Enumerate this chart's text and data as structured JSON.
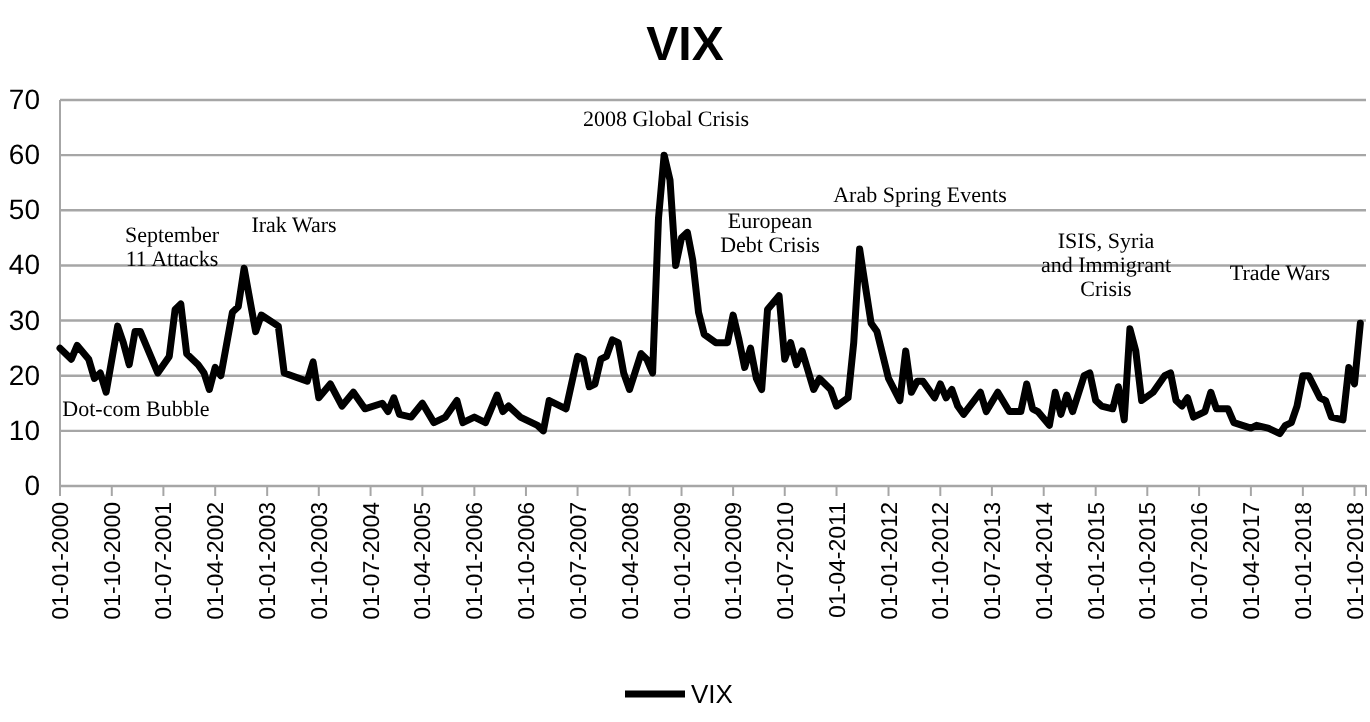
{
  "chart_data": {
    "type": "line",
    "title": "VIX",
    "x": [
      "2000-01",
      "2000-03",
      "2000-04",
      "2000-06",
      "2000-07",
      "2000-08",
      "2000-09",
      "2000-11",
      "2000-12",
      "2001-01",
      "2001-02",
      "2001-03",
      "2001-06",
      "2001-08",
      "2001-09",
      "2001-10",
      "2001-11",
      "2002-01",
      "2002-02",
      "2002-03",
      "2002-04",
      "2002-05",
      "2002-07",
      "2002-08",
      "2002-09",
      "2002-11",
      "2002-12",
      "2003-03",
      "2003-04",
      "2003-08",
      "2003-09",
      "2003-10",
      "2003-12",
      "2004-02",
      "2004-04",
      "2004-06",
      "2004-09",
      "2004-10",
      "2004-11",
      "2004-12",
      "2005-02",
      "2005-04",
      "2005-06",
      "2005-08",
      "2005-10",
      "2005-11",
      "2006-01",
      "2006-03",
      "2006-05",
      "2006-06",
      "2006-07",
      "2006-09",
      "2006-12",
      "2007-01",
      "2007-02",
      "2007-05",
      "2007-07",
      "2007-08",
      "2007-09",
      "2007-10",
      "2007-11",
      "2007-12",
      "2008-01",
      "2008-02",
      "2008-03",
      "2008-04",
      "2008-06",
      "2008-07",
      "2008-08",
      "2008-09",
      "2008-10",
      "2008-11",
      "2008-12",
      "2009-01",
      "2009-02",
      "2009-03",
      "2009-04",
      "2009-05",
      "2009-07",
      "2009-09",
      "2009-10",
      "2009-11",
      "2009-12",
      "2010-01",
      "2010-02",
      "2010-03",
      "2010-04",
      "2010-06",
      "2010-07",
      "2010-08",
      "2010-09",
      "2010-10",
      "2010-12",
      "2011-01",
      "2011-03",
      "2011-04",
      "2011-06",
      "2011-07",
      "2011-08",
      "2011-10",
      "2011-11",
      "2012-01",
      "2012-03",
      "2012-04",
      "2012-05",
      "2012-06",
      "2012-07",
      "2012-09",
      "2012-10",
      "2012-11",
      "2012-12",
      "2013-01",
      "2013-02",
      "2013-05",
      "2013-06",
      "2013-08",
      "2013-10",
      "2013-12",
      "2014-01",
      "2014-02",
      "2014-03",
      "2014-05",
      "2014-06",
      "2014-07",
      "2014-08",
      "2014-09",
      "2014-11",
      "2014-12",
      "2015-01",
      "2015-02",
      "2015-04",
      "2015-05",
      "2015-06",
      "2015-07",
      "2015-08",
      "2015-09",
      "2015-11",
      "2016-01",
      "2016-02",
      "2016-03",
      "2016-04",
      "2016-05",
      "2016-06",
      "2016-08",
      "2016-09",
      "2016-10",
      "2016-12",
      "2017-01",
      "2017-04",
      "2017-05",
      "2017-07",
      "2017-09",
      "2017-10",
      "2017-11",
      "2017-12",
      "2018-01",
      "2018-02",
      "2018-04",
      "2018-05",
      "2018-06",
      "2018-08",
      "2018-09",
      "2018-10",
      "2018-11"
    ],
    "series": [
      {
        "name": "VIX",
        "color": "#000000",
        "values": [
          25,
          23,
          25.5,
          23,
          19.5,
          20.5,
          17,
          29,
          26,
          22,
          28,
          28,
          20.5,
          23.5,
          32,
          33,
          24,
          22,
          20.5,
          17.5,
          21.5,
          20,
          31.5,
          32.5,
          39.5,
          28,
          31,
          29,
          20.5,
          19,
          22.5,
          16,
          18.5,
          14.5,
          17,
          14,
          15,
          13.5,
          16,
          13,
          12.5,
          15,
          11.5,
          12.5,
          15.5,
          11.5,
          12.5,
          11.5,
          16.5,
          13.5,
          14.5,
          12.5,
          11,
          10,
          15.5,
          14,
          23.5,
          23,
          18,
          18.5,
          23,
          23.5,
          26.5,
          26,
          20.5,
          17.5,
          24,
          23,
          20.5,
          48.5,
          60,
          55.5,
          40,
          45,
          46,
          41,
          31.5,
          27.5,
          26,
          26,
          31,
          26.5,
          21.5,
          25,
          19.5,
          17.5,
          32,
          34.5,
          23,
          26,
          22,
          24.5,
          17.5,
          19.5,
          17.5,
          14.5,
          16,
          26,
          43,
          29.5,
          28,
          19.5,
          15.5,
          24.5,
          17,
          19,
          19,
          16,
          18.5,
          16,
          17.5,
          14.5,
          13,
          17,
          13.5,
          17,
          13.5,
          13.5,
          18.5,
          14,
          13.5,
          11,
          17,
          13,
          16.5,
          13.5,
          20,
          20.5,
          15.5,
          14.5,
          14,
          18,
          12,
          28.5,
          24.5,
          15.5,
          17,
          20,
          20.5,
          15.5,
          14.5,
          16,
          12.5,
          13.5,
          17,
          14,
          14,
          11.5,
          10.5,
          11,
          10.5,
          9.5,
          11,
          11.5,
          14.5,
          20,
          20,
          16,
          15.5,
          12.5,
          12,
          21.5,
          18.5,
          29.5
        ]
      }
    ],
    "xlim": [
      "2000-01",
      "2018-12"
    ],
    "xticks": [
      {
        "value": "2000-01",
        "label": "01-01-2000"
      },
      {
        "value": "2000-10",
        "label": "01-10-2000"
      },
      {
        "value": "2001-07",
        "label": "01-07-2001"
      },
      {
        "value": "2002-04",
        "label": "01-04-2002"
      },
      {
        "value": "2003-01",
        "label": "01-01-2003"
      },
      {
        "value": "2003-10",
        "label": "01-10-2003"
      },
      {
        "value": "2004-07",
        "label": "01-07-2004"
      },
      {
        "value": "2005-04",
        "label": "01-04-2005"
      },
      {
        "value": "2006-01",
        "label": "01-01-2006"
      },
      {
        "value": "2006-10",
        "label": "01-10-2006"
      },
      {
        "value": "2007-07",
        "label": "01-07-2007"
      },
      {
        "value": "2008-04",
        "label": "01-04-2008"
      },
      {
        "value": "2009-01",
        "label": "01-01-2009"
      },
      {
        "value": "2009-10",
        "label": "01-10-2009"
      },
      {
        "value": "2010-07",
        "label": "01-07-2010"
      },
      {
        "value": "2011-04",
        "label": "01-04-2011"
      },
      {
        "value": "2012-01",
        "label": "01-01-2012"
      },
      {
        "value": "2012-10",
        "label": "01-10-2012"
      },
      {
        "value": "2013-07",
        "label": "01-07-2013"
      },
      {
        "value": "2014-04",
        "label": "01-04-2014"
      },
      {
        "value": "2015-01",
        "label": "01-01-2015"
      },
      {
        "value": "2015-10",
        "label": "01-10-2015"
      },
      {
        "value": "2016-07",
        "label": "01-07-2016"
      },
      {
        "value": "2017-04",
        "label": "01-04-2017"
      },
      {
        "value": "2018-01",
        "label": "01-01-2018"
      },
      {
        "value": "2018-10",
        "label": "01-10-2018"
      }
    ],
    "ylim": [
      0,
      70
    ],
    "yticks": [
      0,
      10,
      20,
      30,
      40,
      50,
      60,
      70
    ],
    "grid": "y",
    "legend": "bottom",
    "annotations": [
      "Dot-com Bubble",
      "September\n11 Attacks",
      "Irak Wars",
      "2008 Global Crisis",
      "European\nDebt Crisis",
      "Arab Spring Events",
      "ISIS, Syria\nand Immigrant\nCrisis",
      "Trade Wars"
    ]
  }
}
